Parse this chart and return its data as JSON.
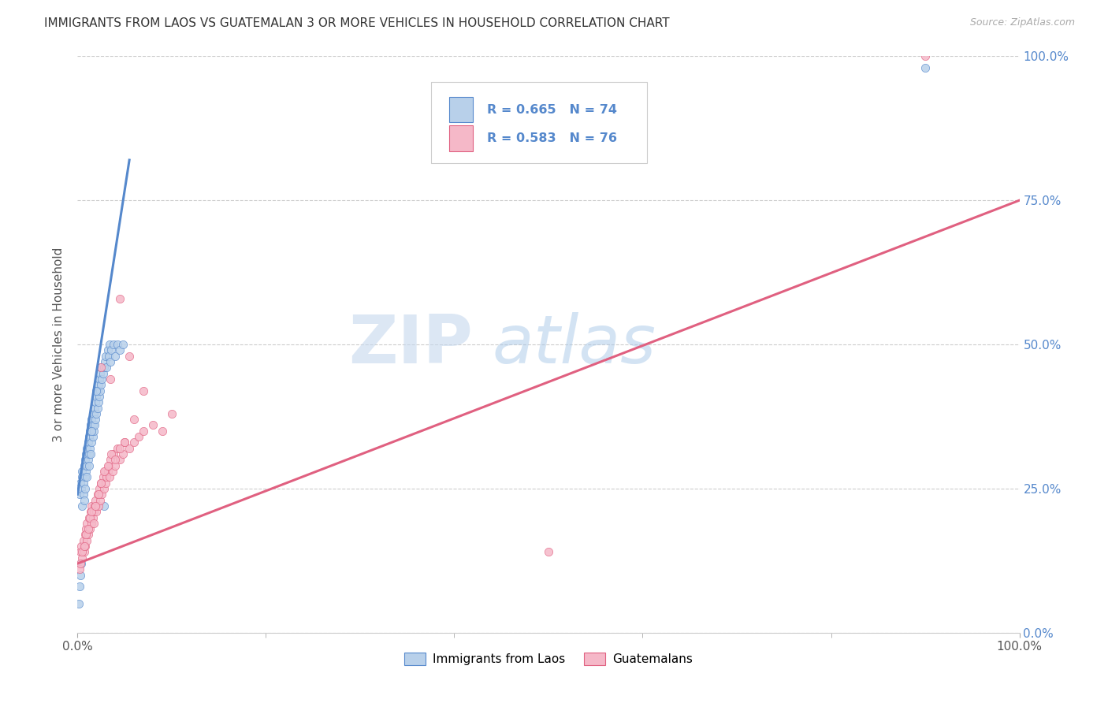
{
  "title": "IMMIGRANTS FROM LAOS VS GUATEMALAN 3 OR MORE VEHICLES IN HOUSEHOLD CORRELATION CHART",
  "source": "Source: ZipAtlas.com",
  "ylabel": "3 or more Vehicles in Household",
  "xlim": [
    0,
    1.0
  ],
  "ylim": [
    0,
    1.0
  ],
  "x_tick_labels": [
    "0.0%",
    "100.0%"
  ],
  "y_tick_labels": [
    "0.0%",
    "25.0%",
    "50.0%",
    "75.0%",
    "100.0%"
  ],
  "y_tick_positions": [
    0.0,
    0.25,
    0.5,
    0.75,
    1.0
  ],
  "watermark_zip": "ZIP",
  "watermark_atlas": "atlas",
  "legend_label_1": "Immigrants from Laos",
  "legend_label_2": "Guatemalans",
  "R1": 0.665,
  "N1": 74,
  "R2": 0.583,
  "N2": 76,
  "color_blue_fill": "#b8d0ea",
  "color_pink_fill": "#f5b8c8",
  "color_blue_line": "#5588cc",
  "color_pink_line": "#e06080",
  "color_blue_text": "#5588cc",
  "color_right_axis": "#5588cc",
  "background_color": "#ffffff",
  "grid_color": "#cccccc",
  "title_color": "#333333",
  "source_color": "#aaaaaa",
  "ylabel_color": "#555555",
  "laos_x": [
    0.002,
    0.003,
    0.004,
    0.005,
    0.005,
    0.006,
    0.007,
    0.008,
    0.008,
    0.009,
    0.009,
    0.01,
    0.01,
    0.011,
    0.011,
    0.012,
    0.012,
    0.013,
    0.013,
    0.014,
    0.014,
    0.015,
    0.015,
    0.015,
    0.016,
    0.016,
    0.017,
    0.017,
    0.018,
    0.018,
    0.019,
    0.019,
    0.02,
    0.02,
    0.021,
    0.021,
    0.022,
    0.022,
    0.023,
    0.023,
    0.024,
    0.024,
    0.025,
    0.025,
    0.026,
    0.027,
    0.028,
    0.029,
    0.03,
    0.031,
    0.032,
    0.033,
    0.034,
    0.035,
    0.036,
    0.038,
    0.04,
    0.042,
    0.045,
    0.048,
    0.001,
    0.002,
    0.003,
    0.004,
    0.005,
    0.006,
    0.007,
    0.008,
    0.01,
    0.012,
    0.015,
    0.02,
    0.028,
    0.9
  ],
  "laos_y": [
    0.24,
    0.26,
    0.25,
    0.27,
    0.28,
    0.26,
    0.29,
    0.27,
    0.3,
    0.28,
    0.31,
    0.29,
    0.32,
    0.3,
    0.33,
    0.31,
    0.34,
    0.32,
    0.35,
    0.31,
    0.36,
    0.33,
    0.35,
    0.37,
    0.34,
    0.36,
    0.35,
    0.38,
    0.36,
    0.39,
    0.37,
    0.4,
    0.38,
    0.41,
    0.39,
    0.42,
    0.4,
    0.43,
    0.41,
    0.44,
    0.42,
    0.45,
    0.43,
    0.46,
    0.44,
    0.45,
    0.46,
    0.47,
    0.48,
    0.46,
    0.49,
    0.48,
    0.5,
    0.47,
    0.49,
    0.5,
    0.48,
    0.5,
    0.49,
    0.5,
    0.05,
    0.08,
    0.1,
    0.12,
    0.22,
    0.24,
    0.23,
    0.25,
    0.27,
    0.29,
    0.35,
    0.42,
    0.22,
    0.98
  ],
  "guatemalan_x": [
    0.003,
    0.004,
    0.005,
    0.006,
    0.007,
    0.008,
    0.008,
    0.009,
    0.01,
    0.01,
    0.011,
    0.012,
    0.013,
    0.014,
    0.015,
    0.015,
    0.016,
    0.017,
    0.018,
    0.019,
    0.02,
    0.021,
    0.022,
    0.023,
    0.024,
    0.025,
    0.026,
    0.027,
    0.028,
    0.029,
    0.03,
    0.031,
    0.032,
    0.033,
    0.034,
    0.035,
    0.037,
    0.038,
    0.04,
    0.042,
    0.045,
    0.048,
    0.05,
    0.055,
    0.06,
    0.065,
    0.07,
    0.08,
    0.09,
    0.1,
    0.002,
    0.003,
    0.005,
    0.007,
    0.009,
    0.011,
    0.013,
    0.015,
    0.017,
    0.019,
    0.022,
    0.025,
    0.028,
    0.032,
    0.036,
    0.04,
    0.045,
    0.05,
    0.06,
    0.07,
    0.025,
    0.035,
    0.045,
    0.055,
    0.5,
    0.9
  ],
  "guatemalan_y": [
    0.14,
    0.15,
    0.13,
    0.16,
    0.14,
    0.17,
    0.15,
    0.18,
    0.16,
    0.19,
    0.17,
    0.2,
    0.18,
    0.21,
    0.19,
    0.22,
    0.2,
    0.21,
    0.22,
    0.23,
    0.21,
    0.24,
    0.22,
    0.25,
    0.23,
    0.26,
    0.24,
    0.27,
    0.25,
    0.28,
    0.26,
    0.27,
    0.28,
    0.29,
    0.27,
    0.3,
    0.28,
    0.31,
    0.29,
    0.32,
    0.3,
    0.31,
    0.33,
    0.32,
    0.33,
    0.34,
    0.35,
    0.36,
    0.35,
    0.38,
    0.11,
    0.12,
    0.14,
    0.15,
    0.17,
    0.18,
    0.2,
    0.21,
    0.19,
    0.22,
    0.24,
    0.26,
    0.28,
    0.29,
    0.31,
    0.3,
    0.32,
    0.33,
    0.37,
    0.42,
    0.46,
    0.44,
    0.58,
    0.48,
    0.14,
    1.0
  ]
}
